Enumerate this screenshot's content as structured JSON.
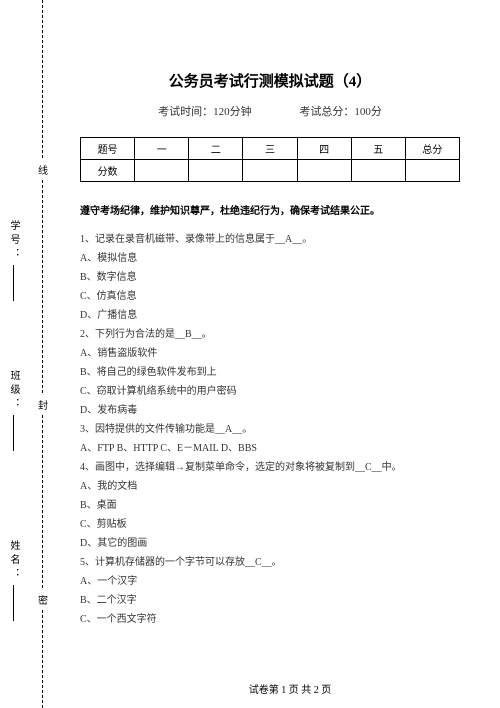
{
  "title": "公务员考试行测模拟试题（4）",
  "exam_time_label": "考试时间：120分钟",
  "total_score_label": "考试总分：100分",
  "table": {
    "headers": [
      "题号",
      "一",
      "二",
      "三",
      "四",
      "五",
      "总分"
    ],
    "row2_label": "分数"
  },
  "instruction": "遵守考场纪律，维护知识尊严，杜绝违纪行为，确保考试结果公正。",
  "lines": [
    "1、记录在录音机磁带、录像带上的信息属于__A__。",
    "A、模拟信息",
    "B、数字信息",
    "C、仿真信息",
    "D、广播信息",
    "2、下列行为合法的是__B__。",
    "A、销售盗版软件",
    "B、将自己的绿色软件发布到上",
    "C、窃取计算机络系统中的用户密码",
    "D、发布病毒",
    "3、因特提供的文件传输功能是__A__。",
    "A、FTP B、HTTP C、E－MAIL D、BBS",
    "4、画图中，选择编辑→复制菜单命令，选定的对象将被复制到__C__中。",
    "A、我的文档",
    "B、桌面",
    "C、剪贴板",
    "D、其它的图画",
    "5、计算机存储器的一个字节可以存放__C__。",
    "A、一个汉字",
    "B、二个汉字",
    "C、一个西文字符"
  ],
  "footer": "试卷第 1 页 共 2 页",
  "sidebar": {
    "name": "姓名：",
    "class": "班级：",
    "id": "学号：",
    "mi": "密",
    "feng": "封",
    "xian": "线"
  }
}
